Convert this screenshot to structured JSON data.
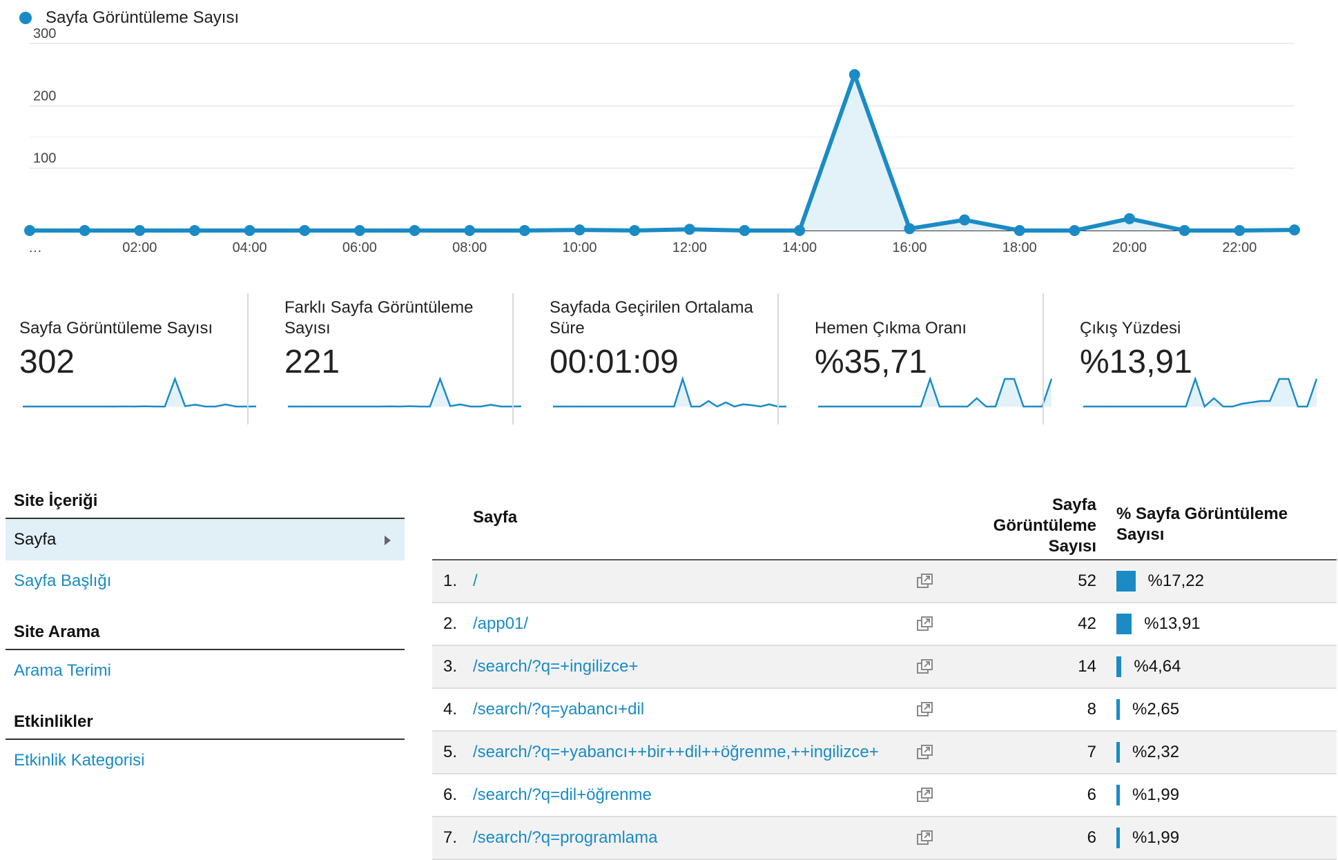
{
  "legend": {
    "label": "Sayfa Görüntüleme Sayısı",
    "color": "#1a8bc5"
  },
  "chart_data": {
    "type": "area",
    "x": [
      "…",
      "01:00",
      "02:00",
      "03:00",
      "04:00",
      "05:00",
      "06:00",
      "07:00",
      "08:00",
      "09:00",
      "10:00",
      "11:00",
      "12:00",
      "13:00",
      "14:00",
      "15:00",
      "16:00",
      "17:00",
      "18:00",
      "19:00",
      "20:00",
      "21:00",
      "22:00",
      "23:00"
    ],
    "xtick_labels": [
      "…",
      "02:00",
      "04:00",
      "06:00",
      "08:00",
      "10:00",
      "12:00",
      "14:00",
      "16:00",
      "18:00",
      "20:00",
      "22:00"
    ],
    "series": [
      {
        "name": "Sayfa Görüntüleme Sayısı",
        "values": [
          0,
          0,
          0,
          0,
          0,
          0,
          0,
          0,
          0,
          0,
          1,
          0,
          2,
          0,
          0,
          250,
          3,
          17,
          0,
          0,
          19,
          0,
          0,
          1
        ]
      }
    ],
    "yticks": [
      100,
      200,
      300
    ],
    "ylim": [
      0,
      300
    ],
    "grid": true,
    "legend": "top-left",
    "color": "#1a8bc5"
  },
  "metrics": [
    {
      "label": "Sayfa Görüntüleme Sayısı",
      "value": "302",
      "spark": [
        0,
        0,
        0,
        0,
        0,
        0,
        0,
        0,
        0,
        0,
        1,
        0,
        2,
        0,
        0,
        250,
        3,
        17,
        0,
        0,
        19,
        0,
        0,
        1
      ]
    },
    {
      "label": "Farklı Sayfa Görüntüleme Sayısı",
      "value": "221",
      "spark": [
        0,
        0,
        0,
        0,
        0,
        0,
        0,
        0,
        0,
        0,
        1,
        0,
        2,
        0,
        0,
        180,
        3,
        14,
        0,
        0,
        12,
        0,
        0,
        1
      ]
    },
    {
      "label": "Sayfada Geçirilen Ortalama Süre",
      "value": "00:01:09",
      "spark": [
        0,
        0,
        0,
        0,
        0,
        0,
        0,
        0,
        0,
        0,
        0,
        0,
        0,
        0,
        0,
        100,
        0,
        0,
        20,
        0,
        15,
        0,
        8,
        5,
        0,
        8,
        0,
        0
      ]
    },
    {
      "label": "Hemen Çıkma Oranı",
      "value": "%35,71",
      "spark": [
        0,
        0,
        0,
        0,
        0,
        0,
        0,
        0,
        0,
        0,
        0,
        0,
        100,
        0,
        0,
        0,
        0,
        30,
        0,
        0,
        100,
        100,
        0,
        0,
        0,
        100
      ]
    },
    {
      "label": "Çıkış Yüzdesi",
      "value": "%13,91",
      "spark": [
        0,
        0,
        0,
        0,
        0,
        0,
        0,
        0,
        0,
        0,
        0,
        0,
        100,
        0,
        30,
        0,
        0,
        10,
        15,
        20,
        20,
        100,
        100,
        0,
        0,
        100
      ]
    }
  ],
  "sidebar": {
    "sections": [
      {
        "heading": "Site İçeriği",
        "items": [
          {
            "label": "Sayfa",
            "active": true
          },
          {
            "label": "Sayfa Başlığı",
            "active": false
          }
        ]
      },
      {
        "heading": "Site Arama",
        "items": [
          {
            "label": "Arama Terimi",
            "active": false
          }
        ]
      },
      {
        "heading": "Etkinlikler",
        "items": [
          {
            "label": "Etkinlik Kategorisi",
            "active": false
          }
        ]
      }
    ]
  },
  "table": {
    "headers": {
      "page": "Sayfa",
      "views": "Sayfa Görüntüleme Sayısı",
      "pct": "% Sayfa Görüntüleme Sayısı"
    },
    "rows": [
      {
        "index": "1.",
        "page": "/",
        "views": "52",
        "pct": "%17,22",
        "share": 17.22
      },
      {
        "index": "2.",
        "page": "/app01/",
        "views": "42",
        "pct": "%13,91",
        "share": 13.91
      },
      {
        "index": "3.",
        "page": "/search/?q=+ingilizce+",
        "views": "14",
        "pct": "%4,64",
        "share": 4.64
      },
      {
        "index": "4.",
        "page": "/search/?q=yabancı+dil",
        "views": "8",
        "pct": "%2,65",
        "share": 2.65
      },
      {
        "index": "5.",
        "page": "/search/?q=+yabancı++bir++dil++öğrenme,++ingilizce+",
        "views": "7",
        "pct": "%2,32",
        "share": 2.32
      },
      {
        "index": "6.",
        "page": "/search/?q=dil+öğrenme",
        "views": "6",
        "pct": "%1,99",
        "share": 1.99
      },
      {
        "index": "7.",
        "page": "/search/?q=programlama",
        "views": "6",
        "pct": "%1,99",
        "share": 1.99
      }
    ]
  }
}
